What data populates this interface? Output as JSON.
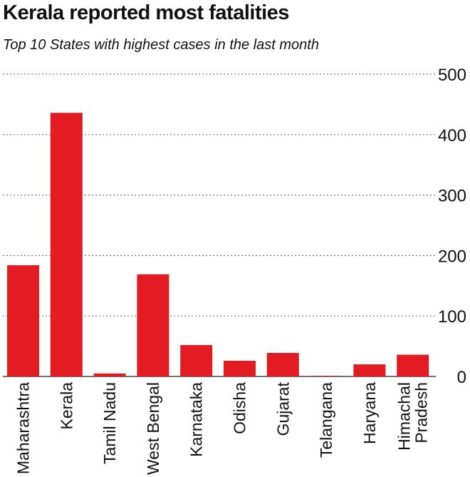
{
  "title": "Kerala reported most fatalities",
  "subtitle": "Top 10 States with highest cases in the last month",
  "colors": {
    "bar": "#e31b23",
    "grid": "#777777",
    "text": "#111111"
  },
  "chart_data": {
    "type": "bar",
    "categories": [
      "Maharashtra",
      "Kerala",
      "Tamil Nadu",
      "West Bengal",
      "Karnataka",
      "Odisha",
      "Gujarat",
      "Telangana",
      "Haryana",
      "Himachal Pradesh"
    ],
    "category_label_lines": [
      [
        "Maharashtra"
      ],
      [
        "Kerala"
      ],
      [
        "Tamil Nadu"
      ],
      [
        "West Bengal"
      ],
      [
        "Karnataka"
      ],
      [
        "Odisha"
      ],
      [
        "Gujarat"
      ],
      [
        "Telangana"
      ],
      [
        "Haryana"
      ],
      [
        "Himachal",
        "Pradesh"
      ]
    ],
    "values": [
      184,
      436,
      5,
      169,
      52,
      26,
      39,
      1,
      20,
      36
    ],
    "yticks": [
      0,
      100,
      200,
      300,
      400,
      500
    ],
    "ylim": [
      0,
      500
    ],
    "y_axis_side": "right",
    "grid": true,
    "grid_style": "dotted"
  }
}
